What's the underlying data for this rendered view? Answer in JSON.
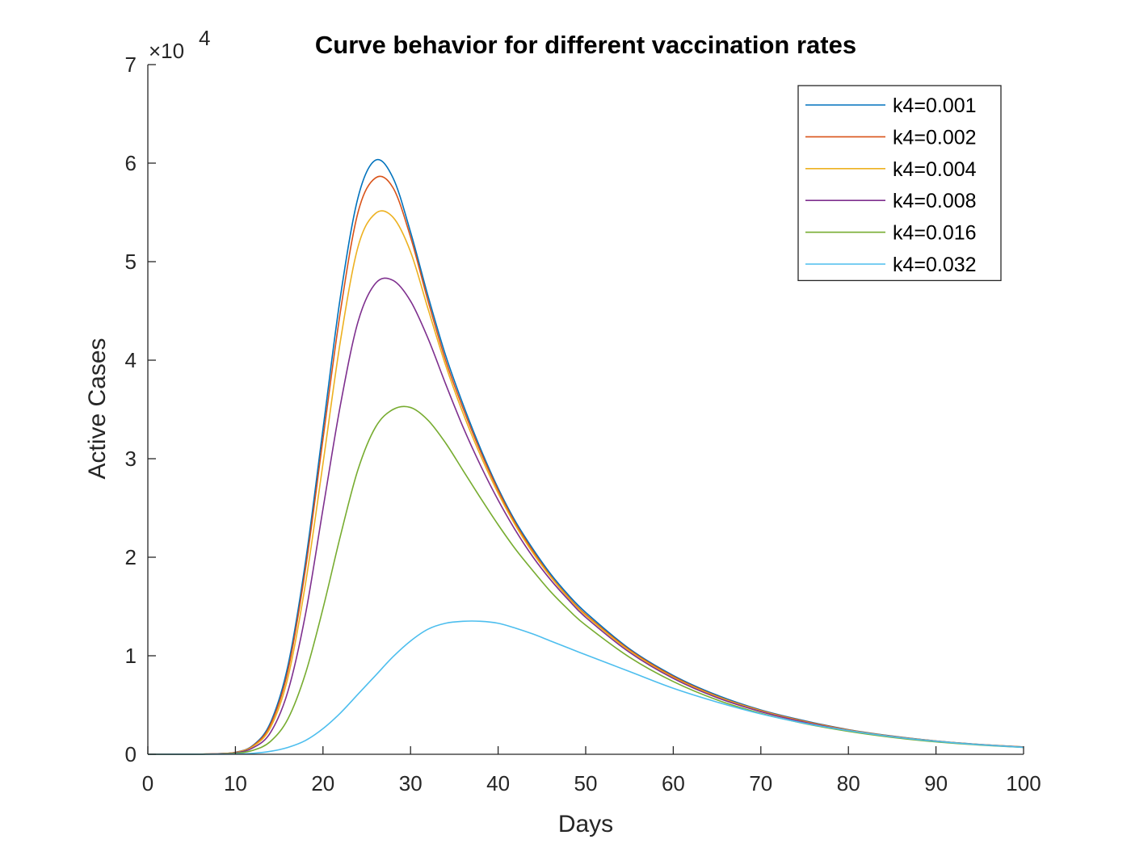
{
  "chart_data": {
    "type": "line",
    "title": "Curve behavior for different vaccination rates",
    "xlabel": "Days",
    "ylabel": "Active Cases",
    "xlim": [
      0,
      100
    ],
    "ylim": [
      0,
      70000
    ],
    "xticks": [
      0,
      10,
      20,
      30,
      40,
      50,
      60,
      70,
      80,
      90,
      100
    ],
    "xtick_labels": [
      "0",
      "10",
      "20",
      "30",
      "40",
      "50",
      "60",
      "70",
      "80",
      "90",
      "100"
    ],
    "yticks": [
      0,
      10000,
      20000,
      30000,
      40000,
      50000,
      60000,
      70000
    ],
    "ytick_labels": [
      "0",
      "1",
      "2",
      "3",
      "4",
      "5",
      "6",
      "7"
    ],
    "y_exponent": {
      "base": "×10",
      "power": "4"
    },
    "grid": false,
    "legend_position": "top-right",
    "x": [
      0,
      5,
      8,
      10,
      12,
      14,
      16,
      18,
      20,
      22,
      24,
      26,
      28,
      30,
      32,
      34,
      36,
      38,
      40,
      42,
      44,
      46,
      48,
      50,
      55,
      60,
      65,
      70,
      75,
      80,
      85,
      90,
      95,
      100
    ],
    "series": [
      {
        "name": "k4=0.001",
        "color": "#0072BD",
        "values": [
          0,
          10,
          60,
          200,
          900,
          3200,
          9000,
          19500,
          33000,
          46500,
          56500,
          60300,
          58500,
          53000,
          46500,
          40500,
          35500,
          31000,
          27000,
          23600,
          20800,
          18300,
          16200,
          14400,
          10700,
          8000,
          6000,
          4500,
          3400,
          2500,
          1850,
          1350,
          1000,
          750
        ]
      },
      {
        "name": "k4=0.002",
        "color": "#D95319",
        "values": [
          0,
          10,
          60,
          190,
          850,
          3000,
          8500,
          18800,
          32000,
          45000,
          55000,
          58500,
          57500,
          52500,
          46000,
          40000,
          35100,
          30700,
          26800,
          23400,
          20600,
          18100,
          16000,
          14200,
          10600,
          7900,
          5900,
          4450,
          3350,
          2480,
          1830,
          1340,
          990,
          740
        ]
      },
      {
        "name": "k4=0.004",
        "color": "#EDB120",
        "values": [
          0,
          10,
          55,
          180,
          780,
          2700,
          7800,
          17300,
          29500,
          42000,
          51500,
          54900,
          54500,
          51000,
          45200,
          39500,
          34600,
          30300,
          26500,
          23200,
          20400,
          18000,
          15900,
          14100,
          10500,
          7800,
          5850,
          4400,
          3300,
          2450,
          1810,
          1320,
          980,
          730
        ]
      },
      {
        "name": "k4=0.008",
        "color": "#7E2F8E",
        "values": [
          0,
          8,
          45,
          150,
          650,
          2200,
          6400,
          14200,
          24900,
          35500,
          43900,
          47800,
          48100,
          46000,
          42200,
          37600,
          33200,
          29300,
          25800,
          22700,
          20000,
          17700,
          15700,
          13900,
          10350,
          7700,
          5750,
          4330,
          3250,
          2420,
          1790,
          1300,
          970,
          720
        ]
      },
      {
        "name": "k4=0.016",
        "color": "#77AC30",
        "values": [
          0,
          6,
          30,
          100,
          400,
          1300,
          3600,
          8200,
          14800,
          22200,
          28900,
          33200,
          35000,
          35200,
          33900,
          31600,
          28800,
          26000,
          23300,
          20800,
          18600,
          16500,
          14700,
          13100,
          9850,
          7380,
          5520,
          4160,
          3120,
          2330,
          1720,
          1260,
          940,
          700
        ]
      },
      {
        "name": "k4=0.032",
        "color": "#4DBEEE",
        "values": [
          0,
          3,
          12,
          30,
          100,
          300,
          700,
          1400,
          2600,
          4200,
          6100,
          8000,
          9900,
          11500,
          12700,
          13300,
          13500,
          13500,
          13300,
          12800,
          12200,
          11500,
          10800,
          10100,
          8400,
          6700,
          5300,
          4100,
          3150,
          2400,
          1780,
          1320,
          970,
          700
        ]
      }
    ]
  }
}
